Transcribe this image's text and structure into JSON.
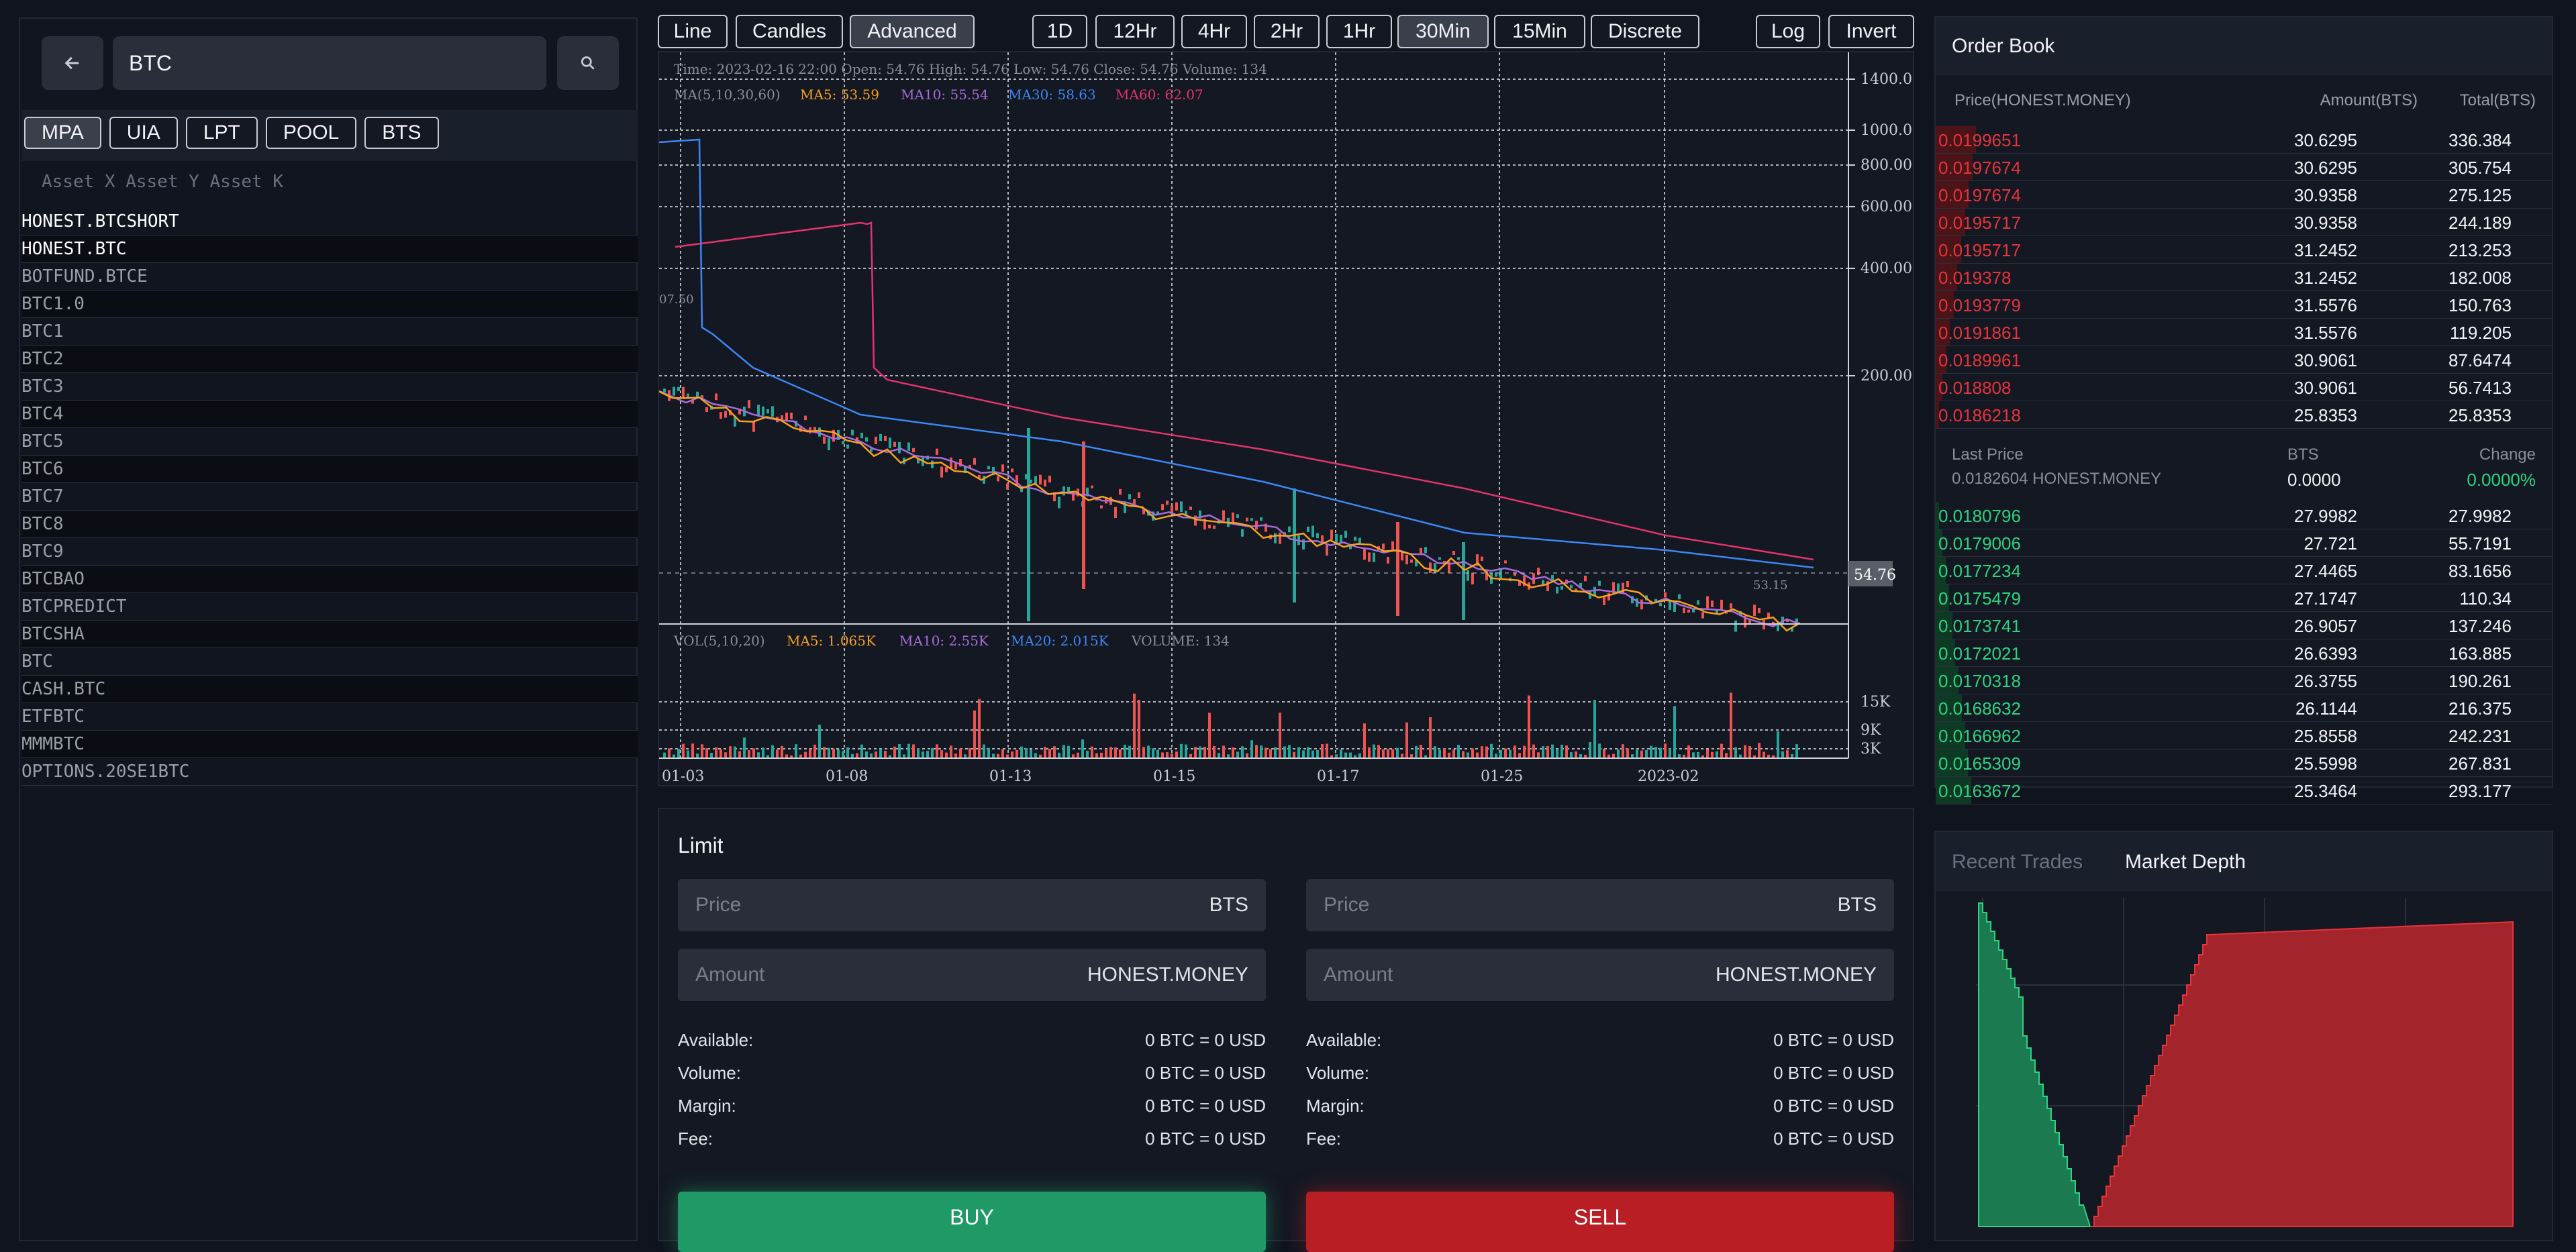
{
  "search": {
    "value": "BTC",
    "back_icon": "arrow-left",
    "search_icon": "magnifier"
  },
  "asset_tabs": [
    "MPA",
    "UIA",
    "LPT",
    "POOL",
    "BTS"
  ],
  "list_header": "Asset X Asset Y Asset K",
  "assets": [
    "HONEST.BTCSHORT",
    "HONEST.BTC",
    "BOTFUND.BTCE",
    "BTC1.0",
    "BTC1",
    "BTC2",
    "BTC3",
    "BTC4",
    "BTC5",
    "BTC6",
    "BTC7",
    "BTC8",
    "BTC9",
    "BTCBAO",
    "BTCPREDICT",
    "BTCSHA",
    "BTC",
    "CASH.BTC",
    "ETFBTC",
    "MMMBTC",
    "OPTIONS.20SE1BTC"
  ],
  "chart_toolbar": {
    "types": [
      "Line",
      "Candles",
      "Advanced"
    ],
    "intervals": [
      "1D",
      "12Hr",
      "4Hr",
      "2Hr",
      "1Hr",
      "30Min",
      "15Min",
      "Discrete"
    ],
    "options": [
      "Log",
      "Invert"
    ]
  },
  "chart_info": {
    "ohlc": "Time: 2023-02-16 22:00   Open: 54.76   High: 54.76   Low: 54.76   Close: 54.76   Volume: 134",
    "ma_label": "MA(5,10,30,60)",
    "ma5": "MA5: 53.59",
    "ma10": "MA10: 55.54",
    "ma30": "MA30: 58.63",
    "ma60": "MA60: 62.07",
    "vol_label": "VOL(5,10,20)",
    "vma5": "MA5: 1.065K",
    "vma10": "MA10: 2.55K",
    "vma20": "MA20: 2.015K",
    "vvol": "VOLUME: 134",
    "last_tag": "54.76",
    "left_tick": "07.50",
    "low_mark": "53.15"
  },
  "chart_data": {
    "type": "candlestick",
    "price_axis": [
      "1400.00",
      "1000.00",
      "800.00",
      "600.00",
      "400.00",
      "200.00"
    ],
    "volume_axis": [
      "15K",
      "9K",
      "3K"
    ],
    "x_ticks": [
      "01-03",
      "01-08",
      "01-13",
      "01-15",
      "01-17",
      "01-25",
      "2023-02"
    ],
    "colors": {
      "up": "#26a69a",
      "down": "#ef5350",
      "ma5": "#f7a21b",
      "ma10": "#a66ddb",
      "ma30": "#3d87f5",
      "ma60": "#e2336b"
    }
  },
  "order_form": {
    "title": "Limit",
    "buy": {
      "price_placeholder": "Price",
      "price_unit": "BTS",
      "amount_placeholder": "Amount",
      "amount_unit": "HONEST.MONEY",
      "rows": [
        {
          "label": "Available:",
          "value": "0 BTC = 0 USD"
        },
        {
          "label": "Volume:",
          "value": "0 BTC = 0 USD"
        },
        {
          "label": "Margin:",
          "value": "0 BTC = 0 USD"
        },
        {
          "label": "Fee:",
          "value": "0 BTC = 0 USD"
        }
      ],
      "button": "BUY"
    },
    "sell": {
      "price_placeholder": "Price",
      "price_unit": "BTS",
      "amount_placeholder": "Amount",
      "amount_unit": "HONEST.MONEY",
      "rows": [
        {
          "label": "Available:",
          "value": "0 BTC = 0 USD"
        },
        {
          "label": "Volume:",
          "value": "0 BTC = 0 USD"
        },
        {
          "label": "Margin:",
          "value": "0 BTC = 0 USD"
        },
        {
          "label": "Fee:",
          "value": "0 BTC = 0 USD"
        }
      ],
      "button": "SELL"
    }
  },
  "order_book": {
    "title": "Order Book",
    "headers": {
      "price": "Price(HONEST.MONEY)",
      "amount": "Amount(BTS)",
      "total": "Total(BTS)"
    },
    "asks": [
      {
        "price": "0.0199651",
        "amount": "30.6295",
        "total": "336.384",
        "depth": 1.0
      },
      {
        "price": "0.0197674",
        "amount": "30.6295",
        "total": "305.754",
        "depth": 0.91
      },
      {
        "price": "0.0197674",
        "amount": "30.9358",
        "total": "275.125",
        "depth": 0.82
      },
      {
        "price": "0.0195717",
        "amount": "30.9358",
        "total": "244.189",
        "depth": 0.73
      },
      {
        "price": "0.0195717",
        "amount": "31.2452",
        "total": "213.253",
        "depth": 0.63
      },
      {
        "price": "0.019378",
        "amount": "31.2452",
        "total": "182.008",
        "depth": 0.54
      },
      {
        "price": "0.0193779",
        "amount": "31.5576",
        "total": "150.763",
        "depth": 0.45
      },
      {
        "price": "0.0191861",
        "amount": "31.5576",
        "total": "119.205",
        "depth": 0.35
      },
      {
        "price": "0.0189961",
        "amount": "30.9061",
        "total": "87.6474",
        "depth": 0.26
      },
      {
        "price": "0.018808",
        "amount": "30.9061",
        "total": "56.7413",
        "depth": 0.17
      },
      {
        "price": "0.0186218",
        "amount": "25.8353",
        "total": "25.8353",
        "depth": 0.08
      }
    ],
    "last": {
      "label": "Last Price",
      "value": "0.0182604 HONEST.MONEY",
      "bts_label": "BTS",
      "bts_value": "0.0000",
      "change_label": "Change",
      "change_value": "0.0000%"
    },
    "bids": [
      {
        "price": "0.0180796",
        "amount": "27.9982",
        "total": "27.9982",
        "depth": 0.09
      },
      {
        "price": "0.0179006",
        "amount": "27.721",
        "total": "55.7191",
        "depth": 0.17
      },
      {
        "price": "0.0177234",
        "amount": "27.4465",
        "total": "83.1656",
        "depth": 0.25
      },
      {
        "price": "0.0175479",
        "amount": "27.1747",
        "total": "110.34",
        "depth": 0.33
      },
      {
        "price": "0.0173741",
        "amount": "26.9057",
        "total": "137.246",
        "depth": 0.41
      },
      {
        "price": "0.0172021",
        "amount": "26.6393",
        "total": "163.885",
        "depth": 0.49
      },
      {
        "price": "0.0170318",
        "amount": "26.3755",
        "total": "190.261",
        "depth": 0.57
      },
      {
        "price": "0.0168632",
        "amount": "26.1144",
        "total": "216.375",
        "depth": 0.65
      },
      {
        "price": "0.0166962",
        "amount": "25.8558",
        "total": "242.231",
        "depth": 0.73
      },
      {
        "price": "0.0165309",
        "amount": "25.5998",
        "total": "267.831",
        "depth": 0.8
      },
      {
        "price": "0.0163672",
        "amount": "25.3464",
        "total": "293.177",
        "depth": 0.88
      }
    ]
  },
  "depth_tabs": {
    "recent": "Recent Trades",
    "depth": "Market Depth"
  }
}
